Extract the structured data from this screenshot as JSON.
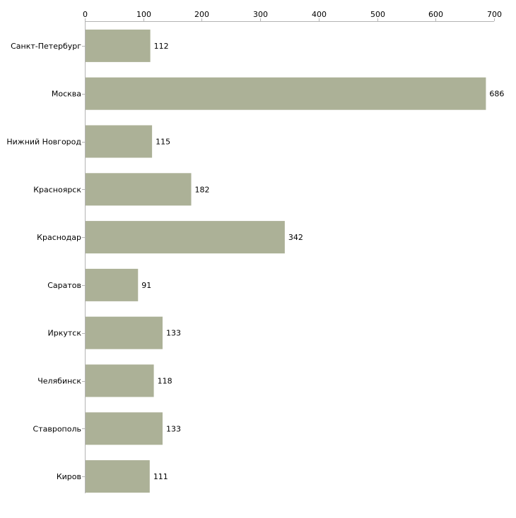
{
  "chart_data": {
    "type": "bar",
    "orientation": "horizontal",
    "categories": [
      "Санкт-Петербург",
      "Москва",
      "Нижний Новгород",
      "Красноярск",
      "Краснодар",
      "Саратов",
      "Иркутск",
      "Челябинск",
      "Ставрополь",
      "Киров"
    ],
    "values": [
      112,
      686,
      115,
      182,
      342,
      91,
      133,
      118,
      133,
      111
    ],
    "xlim": [
      0,
      700
    ],
    "x_ticks": [
      0,
      100,
      200,
      300,
      400,
      500,
      600,
      700
    ],
    "x_axis_position": "top",
    "grid": false,
    "legend": "none",
    "title": "",
    "xlabel": "",
    "ylabel": ""
  },
  "colors": {
    "bar": "#acb197",
    "axis": "#b3b3b3",
    "text": "#000000"
  }
}
